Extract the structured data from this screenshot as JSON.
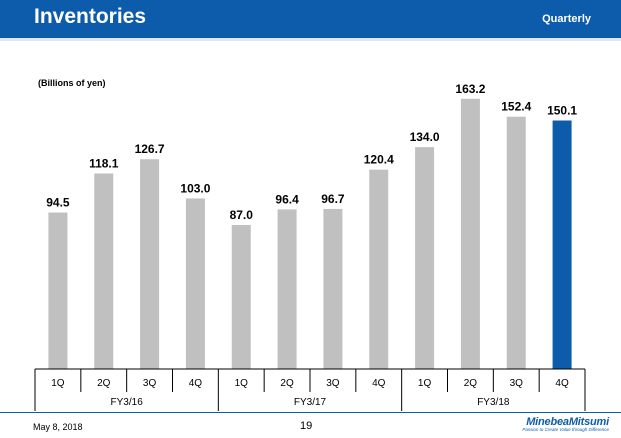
{
  "header": {
    "title": "Inventories",
    "period": "Quarterly"
  },
  "unit_label": "(Billions of yen)",
  "footer": {
    "date": "May 8, 2018",
    "page": "19",
    "logo_name": "MinebeaMitsumi",
    "logo_tagline": "Passion to Create Value through Difference"
  },
  "colors": {
    "brand_blue": "#0d5cab",
    "bar_gray": "#c0c0c0",
    "bar_highlight": "#0d5cab"
  },
  "chart_data": {
    "type": "bar",
    "title": "",
    "xlabel": "",
    "ylabel": "(Billions of yen)",
    "ylim": [
      0,
      180
    ],
    "grid": false,
    "categories": [
      "1Q",
      "2Q",
      "3Q",
      "4Q",
      "1Q",
      "2Q",
      "3Q",
      "4Q",
      "1Q",
      "2Q",
      "3Q",
      "4Q"
    ],
    "groups": [
      {
        "label": "FY3/16",
        "count": 4
      },
      {
        "label": "FY3/17",
        "count": 4
      },
      {
        "label": "FY3/18",
        "count": 4
      }
    ],
    "values": [
      94.5,
      118.1,
      126.7,
      103.0,
      87.0,
      96.4,
      96.7,
      120.4,
      134.0,
      163.2,
      152.4,
      150.1
    ],
    "value_labels": [
      "94.5",
      "118.1",
      "126.7",
      "103.0",
      "87.0",
      "96.4",
      "96.7",
      "120.4",
      "134.0",
      "163.2",
      "152.4",
      "150.1"
    ],
    "highlight_index": 11
  }
}
